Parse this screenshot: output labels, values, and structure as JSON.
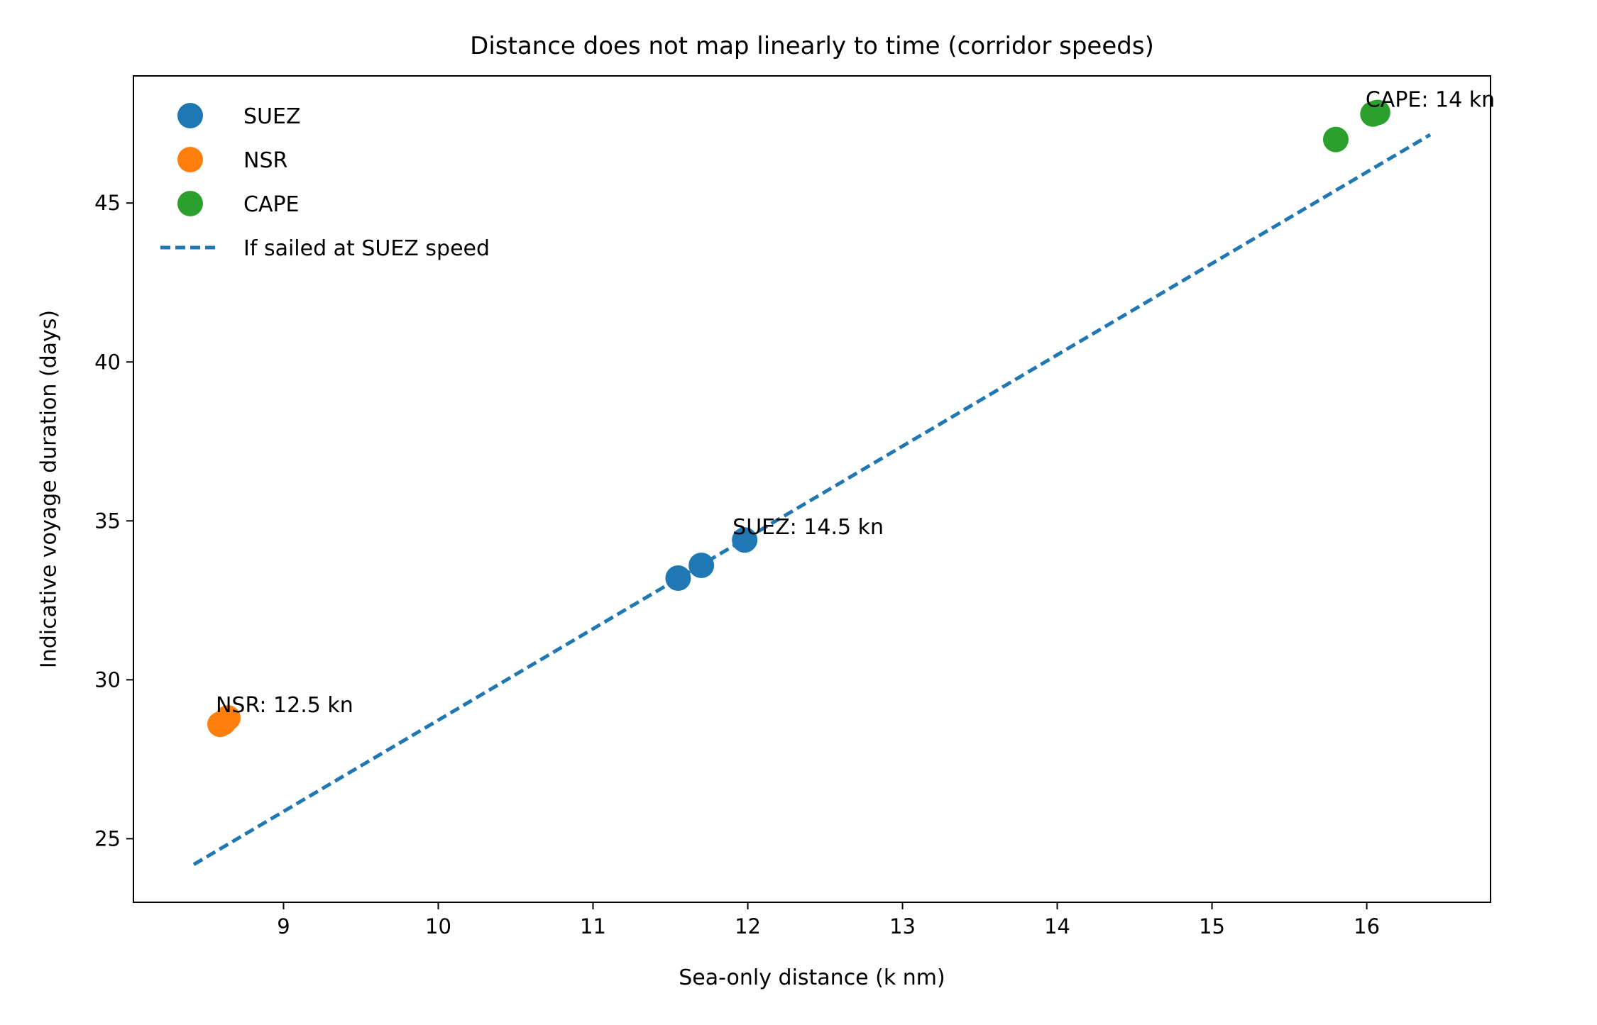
{
  "chart_data": {
    "type": "scatter",
    "title": "Distance does not map linearly to time (corridor speeds)",
    "xlabel": "Sea-only distance (k nm)",
    "ylabel": "Indicative voyage duration (days)",
    "xlim": [
      8.03,
      16.8
    ],
    "ylim": [
      23.0,
      49.0
    ],
    "xticks": [
      9,
      10,
      11,
      12,
      13,
      14,
      15,
      16
    ],
    "yticks": [
      25,
      30,
      35,
      40,
      45
    ],
    "legend_position": "top-left",
    "series": [
      {
        "name": "SUEZ",
        "color": "#1f77b4",
        "points": [
          {
            "x": 11.55,
            "y": 33.2
          },
          {
            "x": 11.7,
            "y": 33.6
          },
          {
            "x": 11.98,
            "y": 34.4
          }
        ],
        "annotation": {
          "text": "SUEZ: 14.5 kn",
          "x": 11.98,
          "y": 34.4
        }
      },
      {
        "name": "NSR",
        "color": "#ff7f0e",
        "points": [
          {
            "x": 8.59,
            "y": 28.6
          },
          {
            "x": 8.61,
            "y": 28.65
          },
          {
            "x": 8.64,
            "y": 28.8
          }
        ],
        "annotation": {
          "text": "NSR: 12.5 kn",
          "x": 8.64,
          "y": 28.8
        }
      },
      {
        "name": "CAPE",
        "color": "#2ca02c",
        "points": [
          {
            "x": 15.8,
            "y": 47.0
          },
          {
            "x": 16.04,
            "y": 47.8
          },
          {
            "x": 16.07,
            "y": 47.85
          }
        ],
        "annotation": {
          "text": "CAPE: 14 kn",
          "x": 16.07,
          "y": 47.85
        }
      }
    ],
    "reference_line": {
      "name": "If sailed at SUEZ speed",
      "color": "#1f77b4",
      "style": "dashed",
      "x": [
        8.42,
        16.41
      ],
      "y": [
        24.19,
        47.15
      ]
    }
  }
}
